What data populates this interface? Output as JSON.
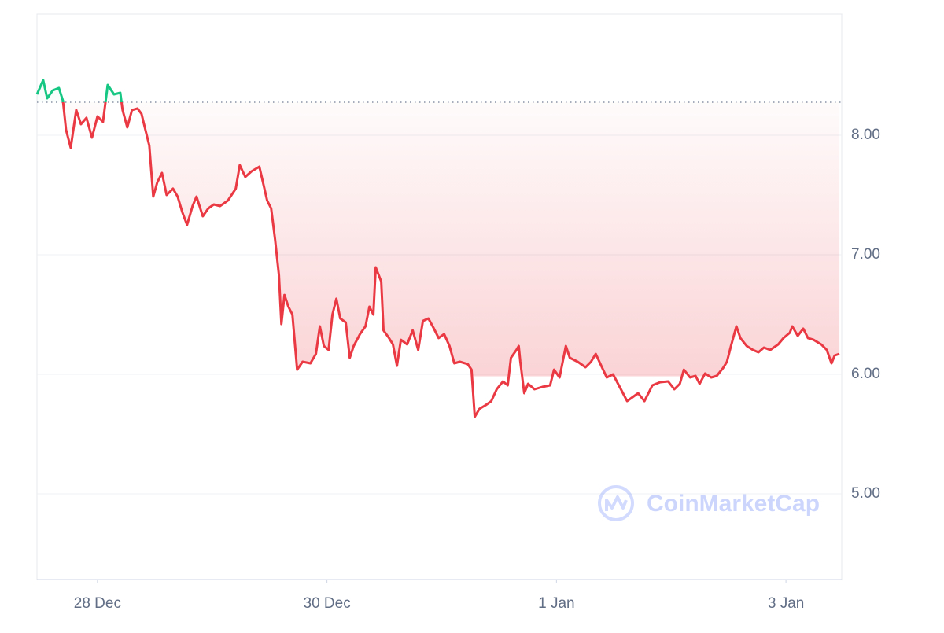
{
  "chart_data": {
    "type": "line",
    "watermark": "CoinMarketCap",
    "baseline": 8.276,
    "up_color": "#16c784",
    "down_color": "#ea3943",
    "grid": true,
    "xlim": [
      0.473,
      7.486
    ],
    "xticks": [
      {
        "value": 1,
        "label": "28 Dec"
      },
      {
        "value": 3,
        "label": "30 Dec"
      },
      {
        "value": 5,
        "label": "1 Jan"
      },
      {
        "value": 7,
        "label": "3 Jan"
      }
    ],
    "ylim": [
      4.283,
      9.013
    ],
    "yticks": [
      {
        "value": 5,
        "label": "5.00"
      },
      {
        "value": 6,
        "label": "6.00"
      },
      {
        "value": 7,
        "label": "7.00"
      },
      {
        "value": 8,
        "label": "8.00"
      }
    ],
    "x": [
      0.473,
      0.527,
      0.562,
      0.61,
      0.664,
      0.699,
      0.726,
      0.767,
      0.815,
      0.856,
      0.904,
      0.952,
      1.0,
      1.048,
      1.089,
      1.144,
      1.199,
      1.219,
      1.26,
      1.301,
      1.349,
      1.384,
      1.418,
      1.452,
      1.486,
      1.521,
      1.562,
      1.603,
      1.658,
      1.699,
      1.74,
      1.781,
      1.829,
      1.863,
      1.918,
      1.966,
      2.014,
      2.068,
      2.137,
      2.205,
      2.24,
      2.288,
      2.342,
      2.411,
      2.479,
      2.514,
      2.548,
      2.582,
      2.603,
      2.63,
      2.664,
      2.699,
      2.74,
      2.788,
      2.856,
      2.904,
      2.938,
      2.973,
      3.014,
      3.048,
      3.082,
      3.116,
      3.164,
      3.199,
      3.233,
      3.288,
      3.336,
      3.37,
      3.404,
      3.425,
      3.473,
      3.493,
      3.541,
      3.575,
      3.61,
      3.644,
      3.699,
      3.747,
      3.795,
      3.836,
      3.884,
      3.932,
      3.973,
      4.021,
      4.068,
      4.11,
      4.158,
      4.226,
      4.26,
      4.288,
      4.329,
      4.384,
      4.432,
      4.479,
      4.534,
      4.575,
      4.603,
      4.651,
      4.671,
      4.685,
      4.719,
      4.753,
      4.808,
      4.877,
      4.945,
      4.979,
      5.027,
      5.082,
      5.116,
      5.185,
      5.253,
      5.301,
      5.342,
      5.39,
      5.438,
      5.493,
      5.562,
      5.616,
      5.664,
      5.712,
      5.767,
      5.836,
      5.904,
      5.973,
      6.027,
      6.075,
      6.11,
      6.164,
      6.212,
      6.247,
      6.295,
      6.349,
      6.397,
      6.452,
      6.486,
      6.521,
      6.568,
      6.603,
      6.658,
      6.712,
      6.76,
      6.808,
      6.863,
      6.932,
      6.979,
      7.034,
      7.055,
      7.103,
      7.151,
      7.192,
      7.24,
      7.308,
      7.356,
      7.397,
      7.425,
      7.466
    ],
    "values": [
      8.342,
      8.461,
      8.309,
      8.375,
      8.395,
      8.289,
      8.046,
      7.895,
      8.211,
      8.092,
      8.145,
      7.98,
      8.158,
      8.112,
      8.421,
      8.342,
      8.355,
      8.211,
      8.066,
      8.211,
      8.224,
      8.178,
      8.046,
      7.914,
      7.487,
      7.605,
      7.684,
      7.5,
      7.553,
      7.487,
      7.355,
      7.25,
      7.408,
      7.487,
      7.322,
      7.388,
      7.421,
      7.408,
      7.454,
      7.553,
      7.75,
      7.651,
      7.697,
      7.737,
      7.454,
      7.388,
      7.125,
      6.829,
      6.421,
      6.664,
      6.566,
      6.5,
      6.039,
      6.105,
      6.092,
      6.171,
      6.401,
      6.237,
      6.204,
      6.5,
      6.632,
      6.467,
      6.434,
      6.138,
      6.237,
      6.336,
      6.401,
      6.566,
      6.5,
      6.895,
      6.776,
      6.368,
      6.303,
      6.25,
      6.072,
      6.289,
      6.25,
      6.368,
      6.204,
      6.447,
      6.467,
      6.382,
      6.303,
      6.336,
      6.237,
      6.092,
      6.105,
      6.086,
      6.039,
      5.645,
      5.711,
      5.743,
      5.776,
      5.875,
      5.941,
      5.908,
      6.138,
      6.204,
      6.237,
      6.105,
      5.842,
      5.921,
      5.875,
      5.895,
      5.908,
      6.039,
      5.974,
      6.237,
      6.138,
      6.105,
      6.059,
      6.105,
      6.171,
      6.072,
      5.974,
      6.0,
      5.875,
      5.776,
      5.809,
      5.842,
      5.776,
      5.908,
      5.934,
      5.941,
      5.875,
      5.921,
      6.039,
      5.974,
      5.987,
      5.921,
      6.007,
      5.974,
      5.987,
      6.053,
      6.105,
      6.237,
      6.401,
      6.303,
      6.237,
      6.204,
      6.184,
      6.224,
      6.204,
      6.25,
      6.303,
      6.349,
      6.401,
      6.322,
      6.382,
      6.303,
      6.289,
      6.25,
      6.204,
      6.092,
      6.158,
      6.171
    ]
  }
}
